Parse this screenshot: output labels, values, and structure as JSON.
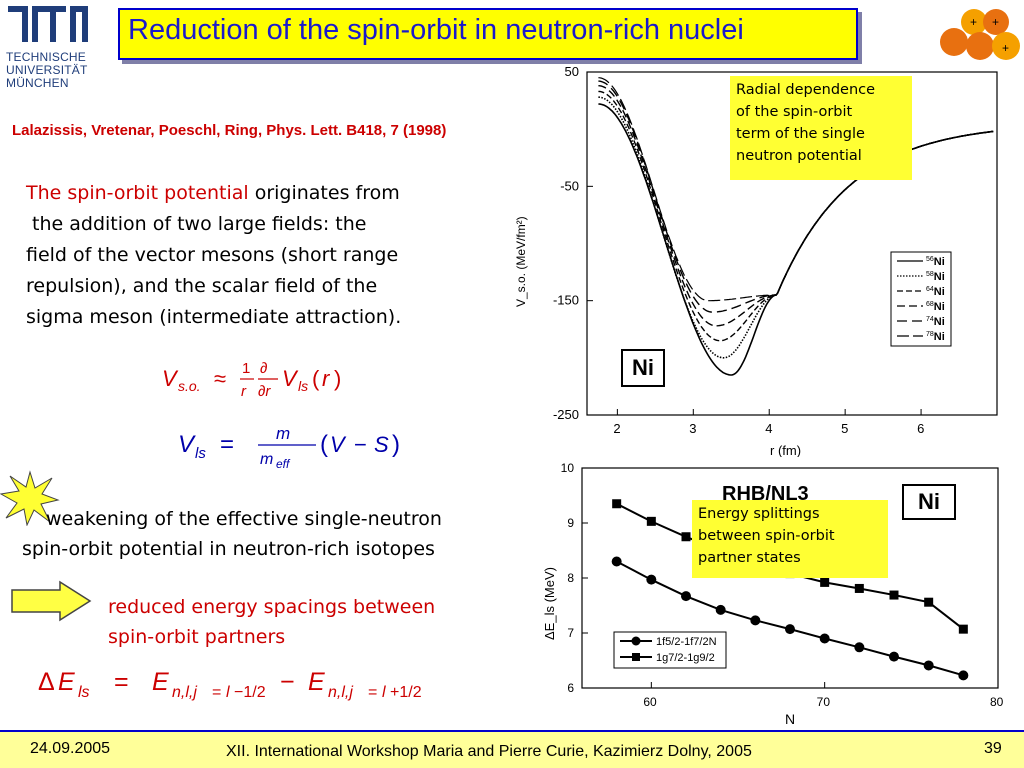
{
  "header": {
    "title": "Reduction of the spin-orbit in neutron-rich nuclei",
    "logo_lines": [
      "TECHNISCHE",
      "UNIVERSITÄT",
      "MÜNCHEN"
    ]
  },
  "reference": "Lalazissis, Vretenar, Poeschl, Ring, Phys. Lett. B418, 7 (1998)",
  "intro": {
    "highlight": "The spin-orbit potential",
    "line1_rest": " originates from",
    "lines": [
      " the addition of two large fields: the",
      "field of the vector mesons (short range",
      "repulsion), and the scalar field of the",
      "sigma meson (intermediate attraction)."
    ]
  },
  "equations": {
    "vso": "V_s.o. ≈ (1/r) ∂/∂r V_ls(r)",
    "vls": "V_ls = m / m_eff (V − S)",
    "delta": "ΔE_ls = E_n,l,j=l−1/2 − E_n,l,j=l+1/2"
  },
  "weakening": {
    "line1": "weakening of the effective single-neutron",
    "line2": "spin-orbit potential in neutron-rich isotopes"
  },
  "conclusion": {
    "line1": "reduced energy spacings between",
    "line2": "spin-orbit partners"
  },
  "notes": {
    "radial": [
      "Radial dependence",
      "of the spin-orbit",
      "term of the single",
      "neutron potential"
    ],
    "splitting": [
      "Energy splittings",
      "between spin-orbit",
      "partner states"
    ]
  },
  "footer": {
    "date": "24.09.2005",
    "event": "XII. International Workshop Maria and Pierre Curie, Kazimierz Dolny, 2005",
    "page": "39"
  },
  "chart_data": [
    {
      "type": "line",
      "xlabel": "r  (fm)",
      "ylabel": "V_s.o.  (MeV/fm²)",
      "xlim": [
        1.6,
        7.0
      ],
      "ylim": [
        -250,
        50
      ],
      "xticks": [
        "2",
        "3",
        "4",
        "5",
        "6"
      ],
      "yticks": [
        "50",
        "-50",
        "-150",
        "-250"
      ],
      "label": "Ni",
      "legend_position": "right",
      "series": [
        {
          "name": "56Ni",
          "minimum": [
            3.5,
            -215
          ],
          "surface_value": 22
        },
        {
          "name": "58Ni",
          "minimum": [
            3.4,
            -200
          ],
          "surface_value": 28
        },
        {
          "name": "64Ni",
          "minimum": [
            3.35,
            -185
          ],
          "surface_value": 33
        },
        {
          "name": "68Ni",
          "minimum": [
            3.3,
            -172
          ],
          "surface_value": 38
        },
        {
          "name": "74Ni",
          "minimum": [
            3.25,
            -160
          ],
          "surface_value": 42
        },
        {
          "name": "78Ni",
          "minimum": [
            3.2,
            -150
          ],
          "surface_value": 45
        }
      ],
      "crossing_point": [
        4.1,
        -145
      ]
    },
    {
      "type": "line",
      "title": "RHB/NL3",
      "xlabel": "N",
      "ylabel": "ΔE_ls  (MeV)",
      "xlim": [
        56,
        80
      ],
      "ylim": [
        6,
        10
      ],
      "xticks": [
        "60",
        "70",
        "80"
      ],
      "yticks": [
        "10",
        "9",
        "8",
        "7",
        "6"
      ],
      "label": "Ni",
      "legend_position": "bottom-left",
      "categories": [
        58,
        60,
        62,
        64,
        66,
        68,
        70,
        72,
        74,
        76,
        78
      ],
      "series": [
        {
          "name": "1f5/2-1f7/2N",
          "marker": "circle",
          "values": [
            8.3,
            7.97,
            7.67,
            7.42,
            7.23,
            7.07,
            6.9,
            6.74,
            6.57,
            6.41,
            6.23
          ]
        },
        {
          "name": "1g7/2-1g9/2",
          "marker": "square",
          "values": [
            9.35,
            9.03,
            8.75,
            8.5,
            8.27,
            8.08,
            7.92,
            7.81,
            7.69,
            7.56,
            7.07
          ]
        }
      ]
    }
  ]
}
